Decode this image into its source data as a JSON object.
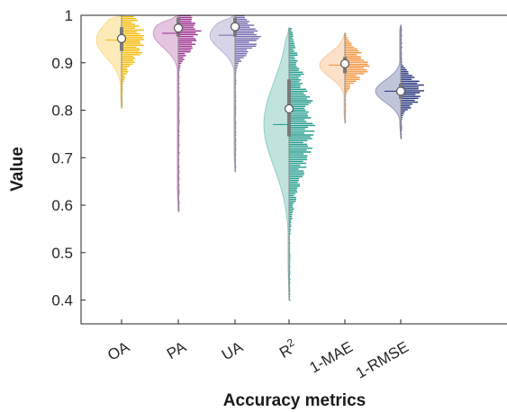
{
  "chart_data": {
    "type": "raincloud",
    "xlabel": "Accuracy metrics",
    "ylabel": "Value",
    "ylim": [
      0.35,
      1.0
    ],
    "yticks": [
      0.4,
      0.5,
      0.6,
      0.7,
      0.8,
      0.9,
      1
    ],
    "ytick_labels": [
      "0.4",
      "0.5",
      "0.6",
      "0.7",
      "0.8",
      "0.9",
      "1"
    ],
    "grid": false,
    "categories": [
      "OA",
      "PA",
      "UA",
      "R2",
      "1-MAE",
      "1-RMSE"
    ],
    "category_labels": [
      "OA",
      "PA",
      "UA",
      "R",
      "1-MAE",
      "1-RMSE"
    ],
    "category_superscripts": [
      "",
      "",
      "",
      "2",
      "",
      ""
    ],
    "series": [
      {
        "category": "OA",
        "color": "#F5B800",
        "mean": 0.951,
        "median": 0.948,
        "q1": 0.925,
        "q3": 0.975,
        "min": 0.805,
        "max": 1.0
      },
      {
        "category": "PA",
        "color": "#9B2F8E",
        "mean": 0.973,
        "median": 0.962,
        "q1": 0.955,
        "q3": 0.995,
        "min": 0.587,
        "max": 1.0
      },
      {
        "category": "UA",
        "color": "#7367AE",
        "mean": 0.976,
        "median": 0.958,
        "q1": 0.955,
        "q3": 0.995,
        "min": 0.671,
        "max": 1.0
      },
      {
        "category": "R2",
        "color": "#1E9A8A",
        "mean": 0.803,
        "median": 0.77,
        "q1": 0.745,
        "q3": 0.865,
        "min": 0.4,
        "max": 0.974
      },
      {
        "category": "1-MAE",
        "color": "#F4923A",
        "mean": 0.898,
        "median": 0.895,
        "q1": 0.878,
        "q3": 0.912,
        "min": 0.773,
        "max": 0.963
      },
      {
        "category": "1-RMSE",
        "color": "#23317A",
        "mean": 0.84,
        "median": 0.84,
        "q1": 0.824,
        "q3": 0.856,
        "min": 0.741,
        "max": 0.98
      }
    ]
  }
}
